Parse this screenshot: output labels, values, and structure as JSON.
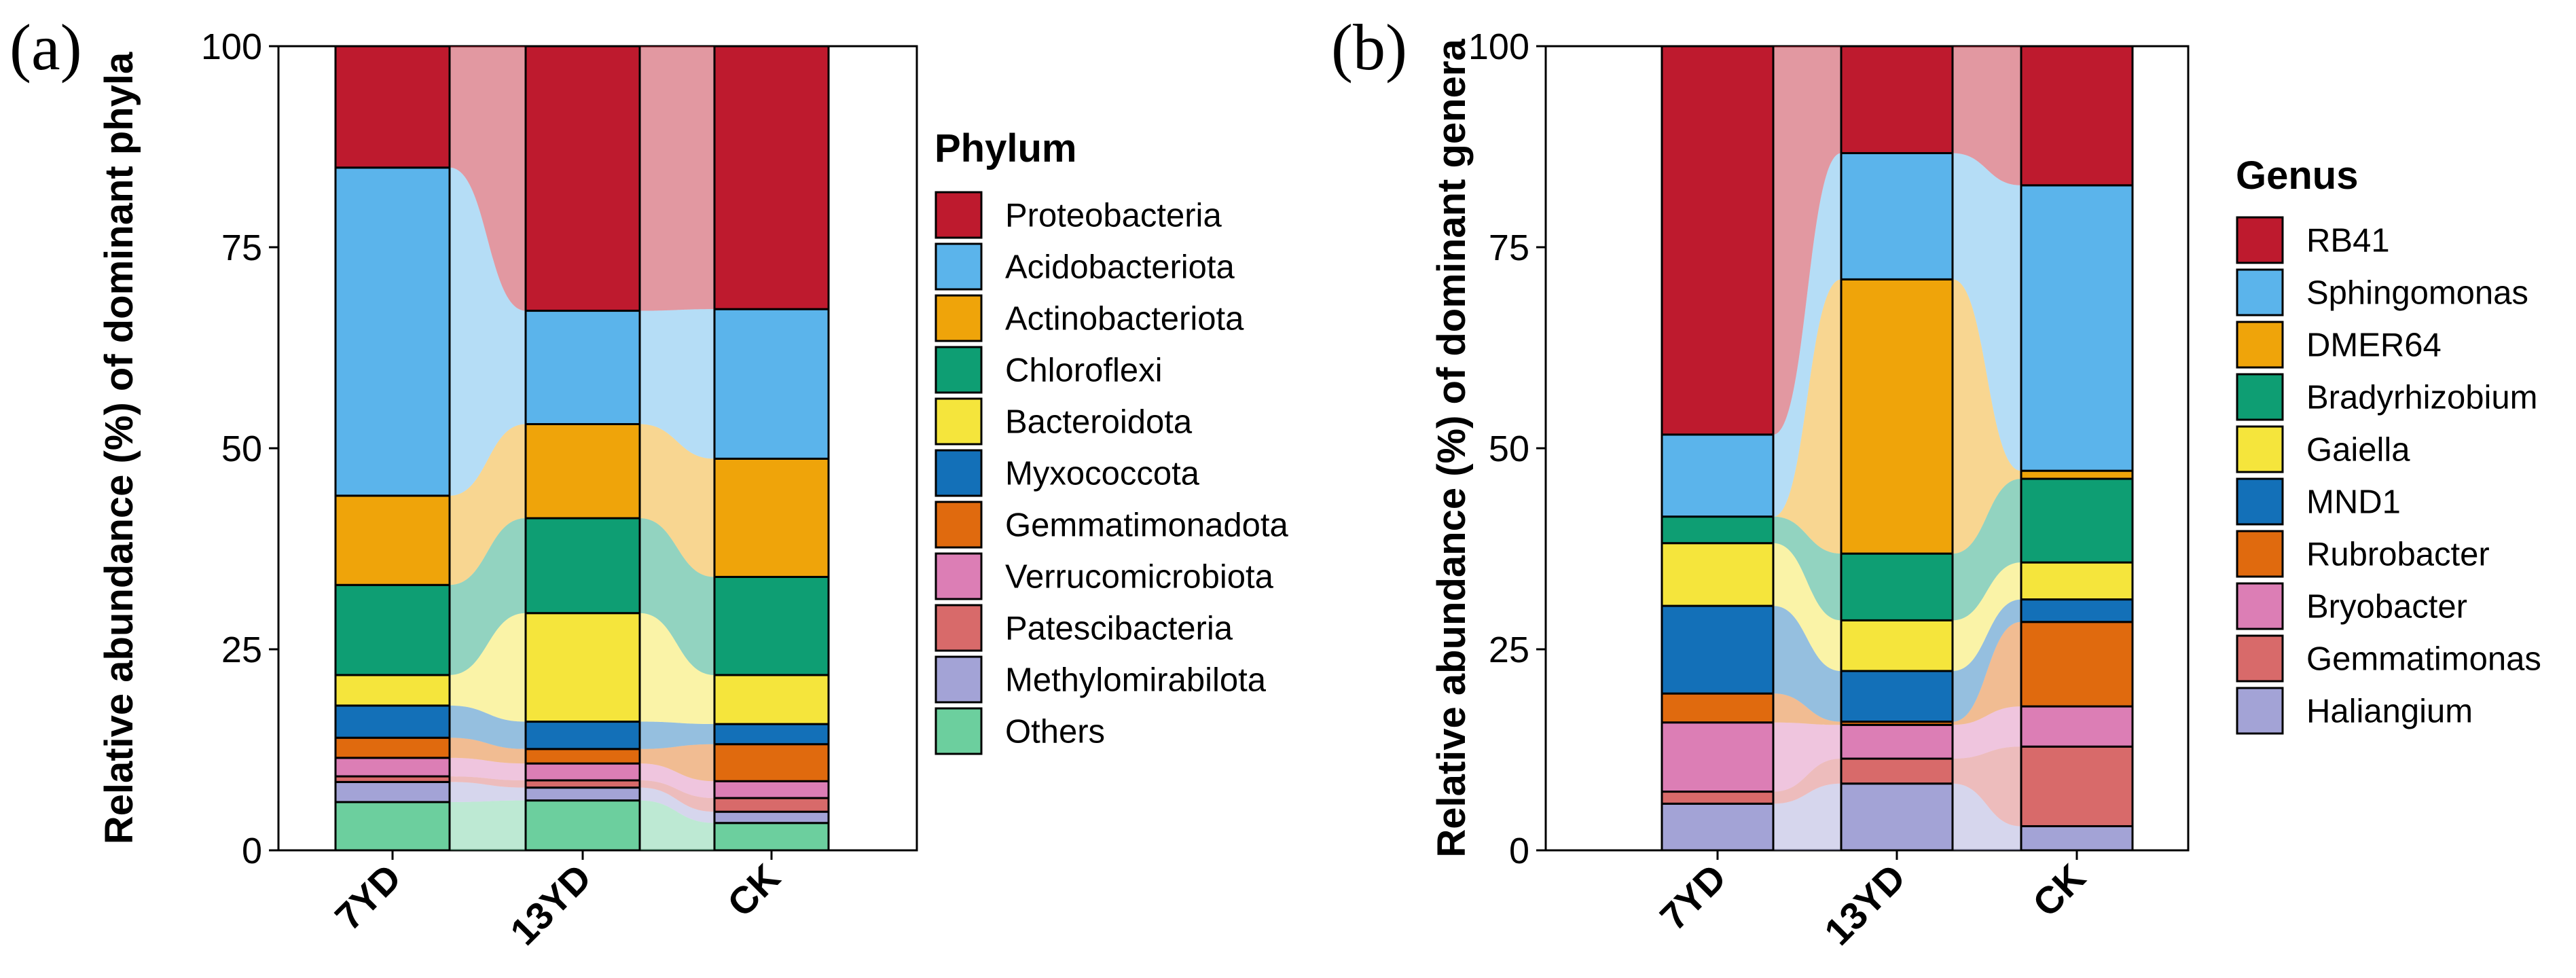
{
  "chart_data": [
    {
      "type": "stacked-bar",
      "panel_label": "(a)",
      "ylabel": "Relative abundance (%) of dominant phyla",
      "ylim": [
        0,
        100
      ],
      "yticks": [
        "0",
        "25",
        "50",
        "75",
        "100"
      ],
      "categories": [
        "7YD",
        "13YD",
        "CK"
      ],
      "legend_title": "Phylum",
      "series": [
        {
          "name": "Others",
          "color": "#6CCF9E",
          "values": [
            6,
            6.2,
            3.4
          ]
        },
        {
          "name": "Methylomirabilota",
          "color": "#A3A3D6",
          "values": [
            2.5,
            1.6,
            1.4
          ]
        },
        {
          "name": "Patescibacteria",
          "color": "#D86A6A",
          "values": [
            0.7,
            0.9,
            1.7
          ]
        },
        {
          "name": "Verrucomicrobiota",
          "color": "#DC7EB5",
          "values": [
            2.3,
            2.1,
            2.1
          ]
        },
        {
          "name": "Gemmatimonadota",
          "color": "#E06A0E",
          "values": [
            2.5,
            1.8,
            4.6
          ]
        },
        {
          "name": "Myxococcota",
          "color": "#1370B8",
          "values": [
            4,
            3.4,
            2.5
          ]
        },
        {
          "name": "Bacteroidota",
          "color": "#F5E53C",
          "values": [
            3.8,
            13.5,
            6.1
          ]
        },
        {
          "name": "Chloroflexi",
          "color": "#0E9E73",
          "values": [
            11.2,
            11.8,
            12.2
          ]
        },
        {
          "name": "Actinobacteriota",
          "color": "#EFA40A",
          "values": [
            11.1,
            11.7,
            14.7
          ]
        },
        {
          "name": "Acidobacteriota",
          "color": "#5BB4EB",
          "values": [
            40.8,
            14.1,
            18.6
          ]
        },
        {
          "name": "Proteobacteria",
          "color": "#BE1A2E",
          "values": [
            15.1,
            32.9,
            32.7
          ]
        }
      ]
    },
    {
      "type": "stacked-bar",
      "panel_label": "(b)",
      "ylabel": "Relative abundance (%) of dominant genera",
      "ylim": [
        0,
        100
      ],
      "yticks": [
        "0",
        "25",
        "50",
        "75",
        "100"
      ],
      "categories": [
        "7YD",
        "13YD",
        "CK"
      ],
      "legend_title": "Genus",
      "series": [
        {
          "name": "Haliangium",
          "color": "#A3A3D6",
          "values": [
            5.8,
            8.3,
            3
          ]
        },
        {
          "name": "Gemmatimonas",
          "color": "#D86A6A",
          "values": [
            1.5,
            3.1,
            9.9
          ]
        },
        {
          "name": "Bryobacter",
          "color": "#DC7EB5",
          "values": [
            8.6,
            4.2,
            5
          ]
        },
        {
          "name": "Rubrobacter",
          "color": "#E06A0E",
          "values": [
            3.6,
            0.4,
            10.5
          ]
        },
        {
          "name": "MND1",
          "color": "#1370B8",
          "values": [
            10.9,
            6.3,
            2.8
          ]
        },
        {
          "name": "Gaiella",
          "color": "#F5E53C",
          "values": [
            7.8,
            6.3,
            4.6
          ]
        },
        {
          "name": "Bradyrhizobium",
          "color": "#0E9E73",
          "values": [
            3.3,
            8.3,
            10.4
          ]
        },
        {
          "name": "DMER64",
          "color": "#EFA40A",
          "values": [
            0,
            34.1,
            1
          ]
        },
        {
          "name": "Sphingomonas",
          "color": "#5BB4EB",
          "values": [
            10.2,
            15.7,
            35.5
          ]
        },
        {
          "name": "RB41",
          "color": "#BE1A2E",
          "values": [
            48.3,
            13.3,
            17.3
          ]
        }
      ]
    }
  ]
}
